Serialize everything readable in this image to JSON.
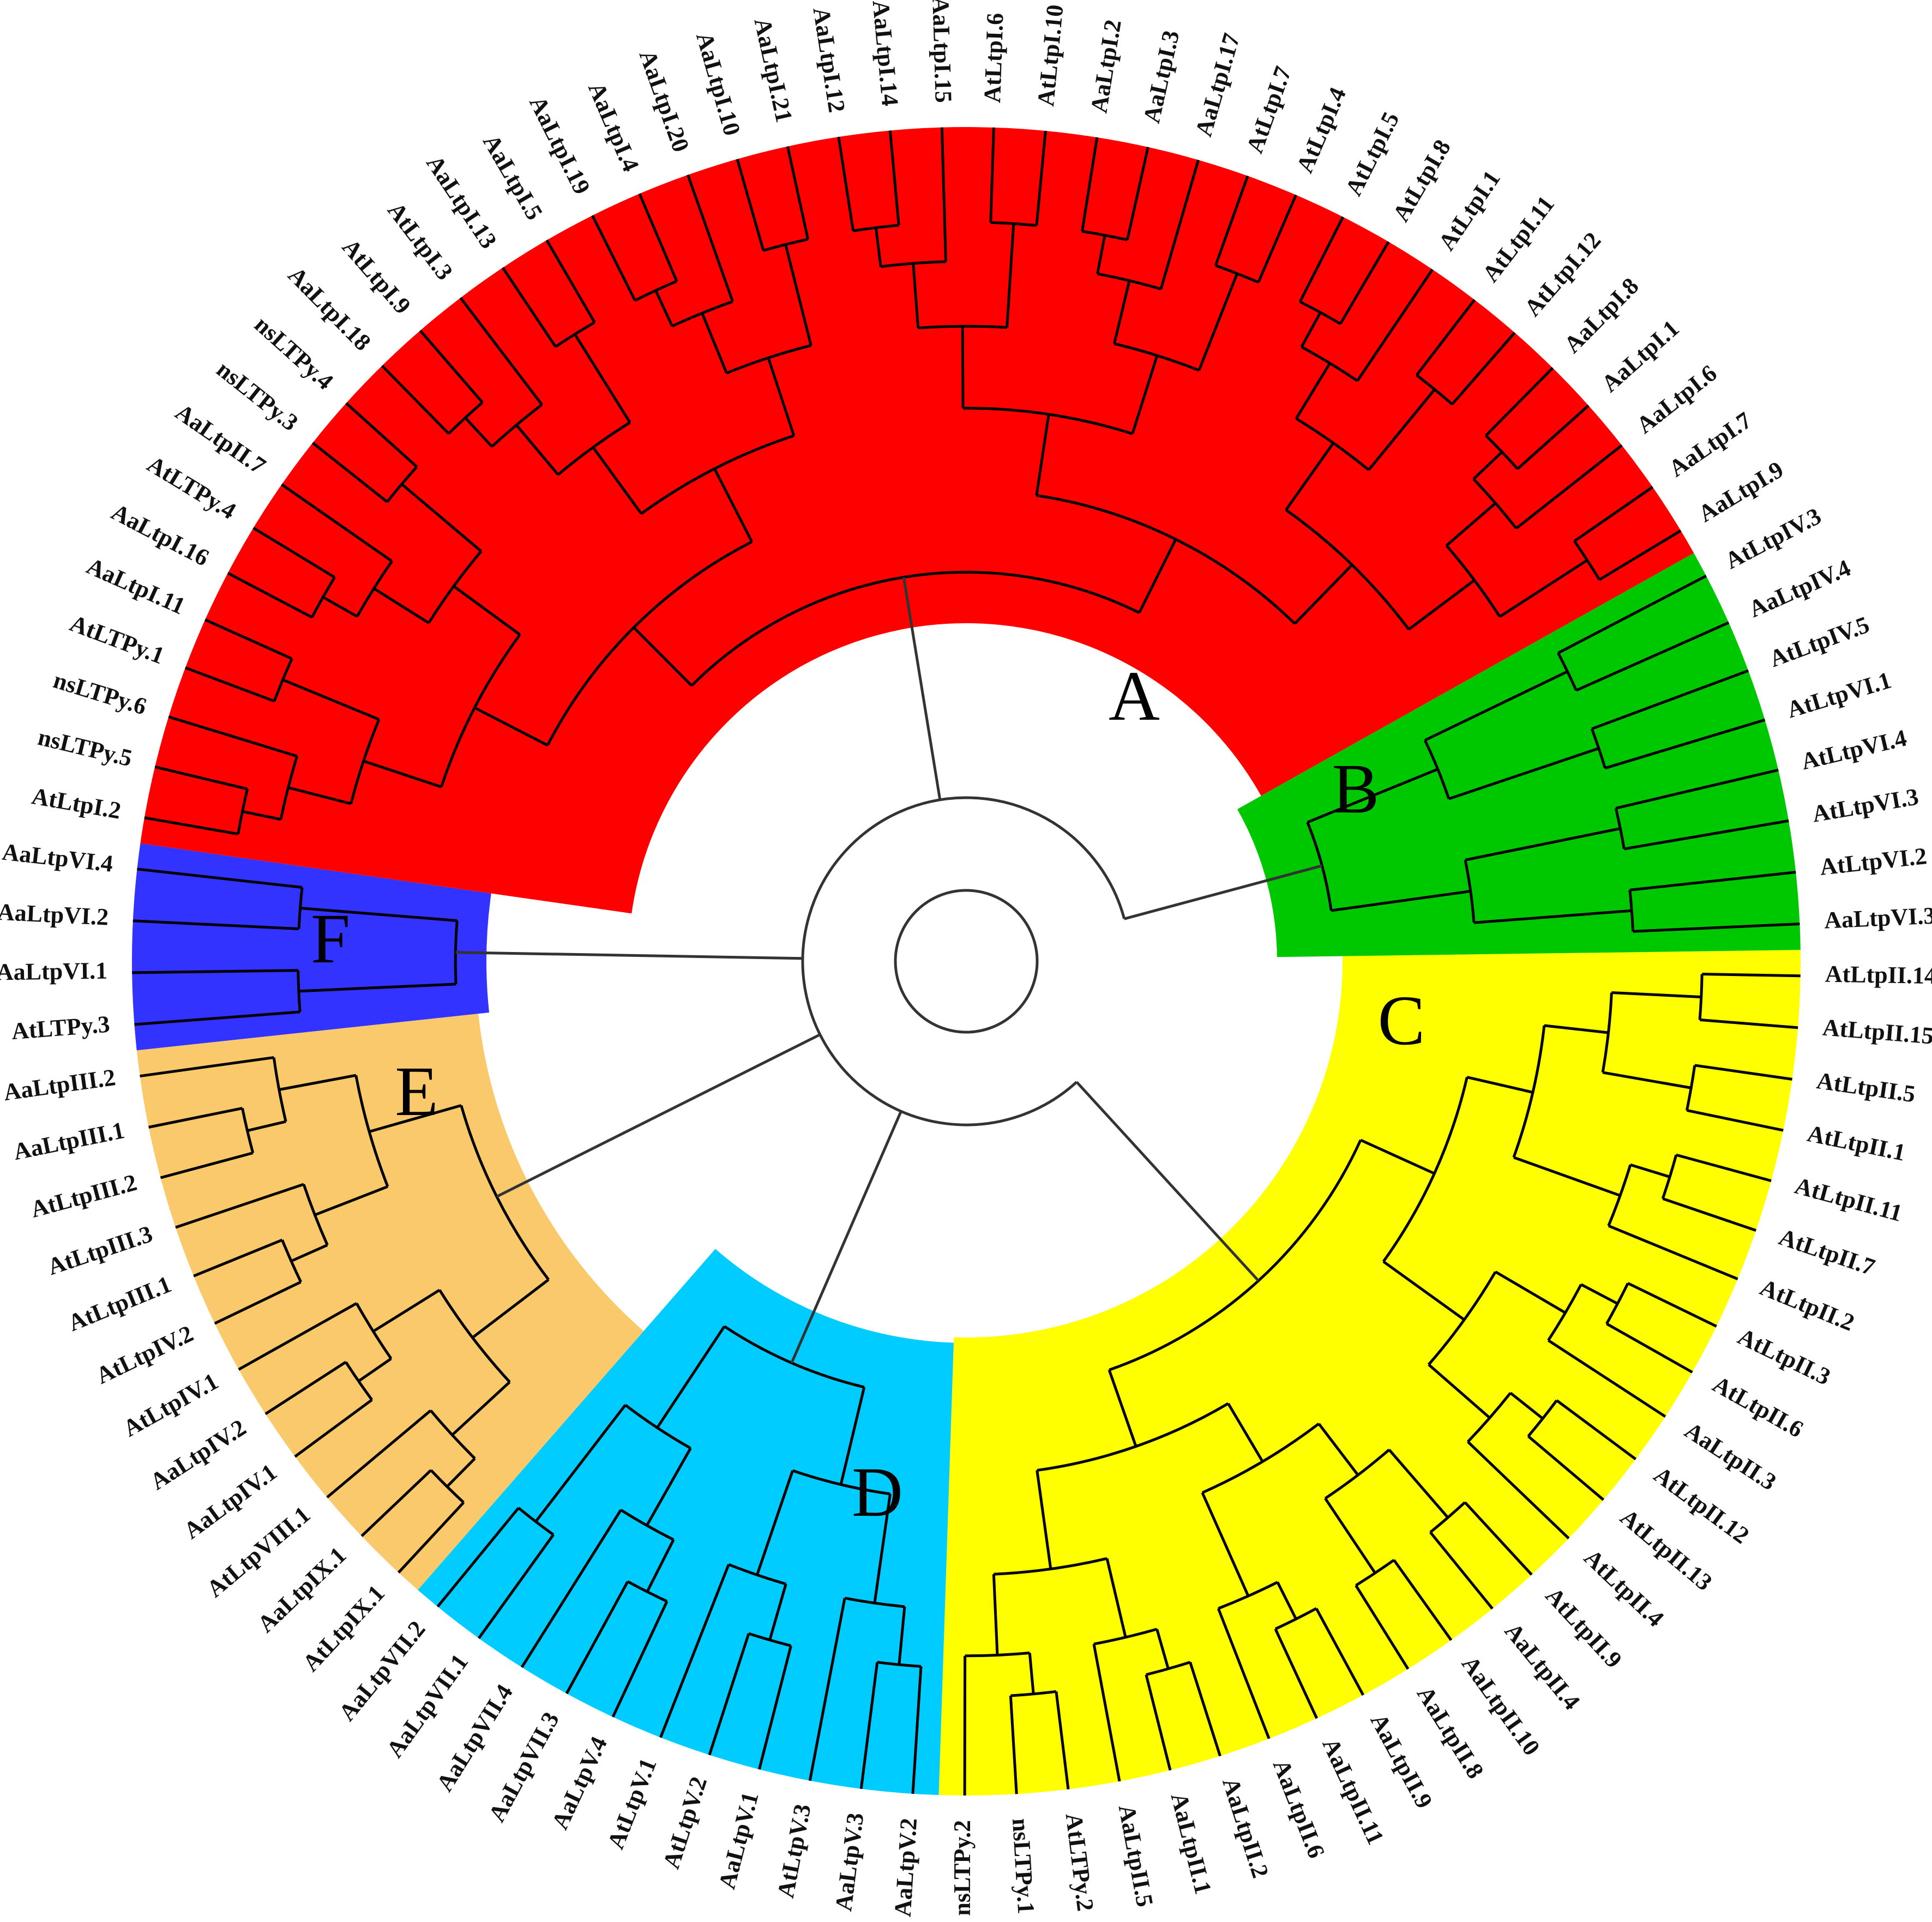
{
  "figure": {
    "type": "circular phylogenetic tree",
    "clades": [
      {
        "letter": "C",
        "color": "#ffff00",
        "leaves": [
          "AtLtpII.14",
          "AtLtpII.15",
          "AtLtpII.5",
          "AtLtpII.1",
          "AtLtpII.11",
          "AtLtpII.7",
          "AtLtpII.2",
          "AtLtpII.3",
          "AtLtpII.6",
          "AaLtpII.3",
          "AtLtpII.12",
          "AtLtpII.13",
          "AtLtpII.4",
          "AtLtpII.9",
          "AaLtpII.4",
          "AaLtpII.10",
          "AaLtpII.8",
          "AaLtpII.9",
          "AaLtpII.11",
          "AaLtpII.6",
          "AaLtpII.2",
          "AaLtpII.1",
          "AaLtpII.5",
          "AtLTPy.2",
          "nsLTPy.1",
          "nsLTPy.2"
        ]
      },
      {
        "letter": "D",
        "color": "#00ccff",
        "leaves": [
          "AaLtpV.2",
          "AaLtpV.3",
          "AtLtpV.3",
          "AaLtpV.1",
          "AtLtpV.2",
          "AtLtpV.1",
          "AaLtpV.4",
          "AaLtpVII.3",
          "AaLtpVII.4",
          "AaLtpVII.1",
          "AaLtpVII.2"
        ]
      },
      {
        "letter": "E",
        "color": "#f9c96b",
        "leaves": [
          "AtLtpIX.1",
          "AaLtpIX.1",
          "AtLtpVIII.1",
          "AaLtpIV.1",
          "AaLtpIV.2",
          "AtLtpIV.1",
          "AtLtpIV.2",
          "AtLtpIII.1",
          "AtLtpIII.3",
          "AtLtpIII.2",
          "AaLtpIII.1",
          "AaLtpIII.2"
        ]
      },
      {
        "letter": "F",
        "color": "#3333ff",
        "leaves": [
          "AtLTPy.3",
          "AaLtpVI.1",
          "AaLtpVI.2",
          "AaLtpVI.4"
        ]
      },
      {
        "letter": "A",
        "color": "#ff0000",
        "leaves": [
          "AtLtpI.2",
          "nsLTPy.5",
          "nsLTPy.6",
          "AtLTPy.1",
          "AaLtpI.11",
          "AaLtpI.16",
          "AtLTPy.4",
          "AaLtpII.7",
          "nsLTPy.3",
          "nsLTPy.4",
          "AaLtpI.18",
          "AtLtpI.9",
          "AtLtpI.3",
          "AaLtpI.13",
          "AaLtpI.5",
          "AaLtpI.19",
          "AaLtpI.4",
          "AaLtpI.20",
          "AaLtpI.10",
          "AaLtpI.21",
          "AaLtpI.12",
          "AaLtpI.14",
          "AaLtpI.15",
          "AtLtpI.6",
          "AtLtpI.10",
          "AaLtpI.2",
          "AaLtpI.3",
          "AaLtpI.17",
          "AtLtpI.7",
          "AtLtpI.4",
          "AtLtpI.5",
          "AtLtpI.8",
          "AtLtpI.1",
          "AtLtpI.11",
          "AtLtpI.12",
          "AaLtpI.8",
          "AaLtpI.1",
          "AaLtpI.6",
          "AaLtpI.7",
          "AaLtpI.9"
        ]
      },
      {
        "letter": "B",
        "color": "#00c800",
        "leaves": [
          "AtLtpIV.3",
          "AaLtpIV.4",
          "AtLtpIV.5",
          "AtLtpVI.1",
          "AtLtpVI.4",
          "AtLtpVI.3",
          "AtLtpVI.2",
          "AaLtpVI.3"
        ]
      }
    ]
  }
}
